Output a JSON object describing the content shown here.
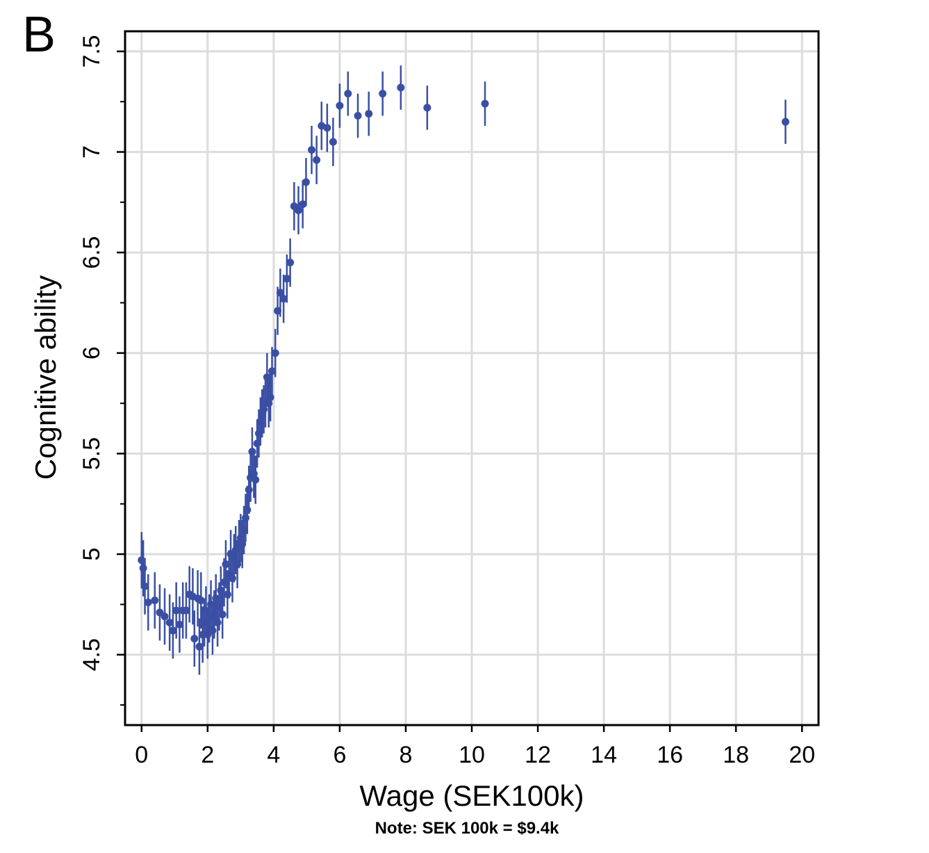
{
  "panel_label": "B",
  "note": "Note: SEK 100k = $9.4k",
  "colors": {
    "marker": "#3a4fa3",
    "grid": "#dcdcdc",
    "axis": "#000000"
  },
  "chart_data": {
    "type": "scatter",
    "xlabel": "Wage (SEK100k)",
    "ylabel": "Cognitive ability",
    "xlim": [
      -0.5,
      20.5
    ],
    "ylim": [
      4.15,
      7.6
    ],
    "x_ticks": [
      0,
      2,
      4,
      6,
      8,
      10,
      12,
      14,
      16,
      18,
      20
    ],
    "x_tick_labels": [
      "0",
      "2",
      "4",
      "6",
      "8",
      "10",
      "12",
      "14",
      "16",
      "18",
      "20"
    ],
    "y_ticks": [
      4.5,
      5,
      5.5,
      6,
      6.5,
      7,
      7.5
    ],
    "y_tick_labels": [
      "4.5",
      "5",
      "5.5",
      "6",
      "6.5",
      "7",
      "7.5"
    ],
    "y_minor_ticks": [
      4.25,
      4.75,
      5.25,
      5.75,
      6.25,
      6.75,
      7.25
    ],
    "grid": true,
    "error_bars": true,
    "series": [
      {
        "points": [
          [
            0.0,
            4.97,
            0.14
          ],
          [
            0.05,
            4.93,
            0.14
          ],
          [
            0.1,
            4.84,
            0.14
          ],
          [
            0.2,
            4.76,
            0.14
          ],
          [
            0.4,
            4.77,
            0.14
          ],
          [
            0.55,
            4.71,
            0.14
          ],
          [
            0.7,
            4.69,
            0.14
          ],
          [
            0.85,
            4.66,
            0.14
          ],
          [
            0.95,
            4.62,
            0.14
          ],
          [
            1.05,
            4.72,
            0.14
          ],
          [
            1.15,
            4.65,
            0.14
          ],
          [
            1.25,
            4.72,
            0.14
          ],
          [
            1.35,
            4.72,
            0.14
          ],
          [
            1.45,
            4.8,
            0.14
          ],
          [
            1.55,
            4.79,
            0.14
          ],
          [
            1.6,
            4.58,
            0.14
          ],
          [
            1.7,
            4.78,
            0.14
          ],
          [
            1.75,
            4.54,
            0.14
          ],
          [
            1.8,
            4.77,
            0.14
          ],
          [
            1.85,
            4.6,
            0.14
          ],
          [
            1.9,
            4.66,
            0.12
          ],
          [
            1.95,
            4.72,
            0.12
          ],
          [
            2.0,
            4.6,
            0.12
          ],
          [
            2.05,
            4.68,
            0.12
          ],
          [
            2.1,
            4.75,
            0.12
          ],
          [
            2.15,
            4.62,
            0.12
          ],
          [
            2.2,
            4.7,
            0.12
          ],
          [
            2.25,
            4.78,
            0.12
          ],
          [
            2.3,
            4.66,
            0.12
          ],
          [
            2.35,
            4.74,
            0.12
          ],
          [
            2.4,
            4.82,
            0.12
          ],
          [
            2.45,
            4.7,
            0.12
          ],
          [
            2.5,
            4.86,
            0.12
          ],
          [
            2.55,
            4.95,
            0.12
          ],
          [
            2.6,
            4.8,
            0.12
          ],
          [
            2.65,
            4.9,
            0.12
          ],
          [
            2.7,
            5.0,
            0.12
          ],
          [
            2.75,
            4.88,
            0.12
          ],
          [
            2.8,
            4.98,
            0.12
          ],
          [
            2.85,
            5.02,
            0.12
          ],
          [
            2.9,
            4.95,
            0.12
          ],
          [
            2.95,
            5.05,
            0.12
          ],
          [
            3.0,
            5.08,
            0.12
          ],
          [
            3.05,
            5.05,
            0.12
          ],
          [
            3.1,
            5.12,
            0.12
          ],
          [
            3.15,
            5.18,
            0.12
          ],
          [
            3.2,
            5.22,
            0.12
          ],
          [
            3.25,
            5.32,
            0.12
          ],
          [
            3.3,
            5.38,
            0.12
          ],
          [
            3.35,
            5.51,
            0.12
          ],
          [
            3.4,
            5.4,
            0.12
          ],
          [
            3.45,
            5.37,
            0.12
          ],
          [
            3.5,
            5.55,
            0.12
          ],
          [
            3.55,
            5.6,
            0.12
          ],
          [
            3.6,
            5.66,
            0.12
          ],
          [
            3.65,
            5.7,
            0.12
          ],
          [
            3.7,
            5.72,
            0.12
          ],
          [
            3.75,
            5.75,
            0.12
          ],
          [
            3.8,
            5.88,
            0.12
          ],
          [
            3.85,
            5.75,
            0.12
          ],
          [
            3.9,
            5.78,
            0.12
          ],
          [
            3.95,
            5.91,
            0.12
          ],
          [
            4.05,
            6.0,
            0.12
          ],
          [
            4.12,
            6.21,
            0.12
          ],
          [
            4.2,
            6.3,
            0.12
          ],
          [
            4.3,
            6.27,
            0.12
          ],
          [
            4.4,
            6.37,
            0.12
          ],
          [
            4.5,
            6.45,
            0.12
          ],
          [
            4.62,
            6.73,
            0.12
          ],
          [
            4.75,
            6.71,
            0.12
          ],
          [
            4.88,
            6.74,
            0.12
          ],
          [
            4.98,
            6.85,
            0.12
          ],
          [
            5.15,
            7.01,
            0.12
          ],
          [
            5.3,
            6.96,
            0.12
          ],
          [
            5.45,
            7.13,
            0.12
          ],
          [
            5.62,
            7.12,
            0.12
          ],
          [
            5.8,
            7.05,
            0.12
          ],
          [
            6.0,
            7.23,
            0.11
          ],
          [
            6.25,
            7.29,
            0.11
          ],
          [
            6.55,
            7.18,
            0.11
          ],
          [
            6.88,
            7.19,
            0.11
          ],
          [
            7.3,
            7.29,
            0.11
          ],
          [
            7.85,
            7.32,
            0.11
          ],
          [
            8.65,
            7.22,
            0.11
          ],
          [
            10.4,
            7.24,
            0.11
          ],
          [
            19.5,
            7.15,
            0.11
          ]
        ]
      }
    ]
  }
}
